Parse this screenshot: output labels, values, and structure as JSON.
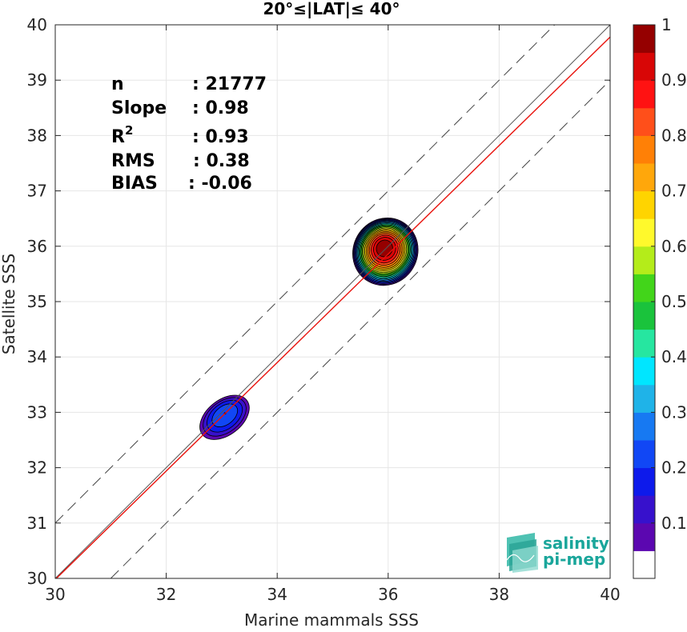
{
  "chart_data": {
    "type": "heatmap",
    "title": "20°≤|LAT|≤ 40°",
    "xlabel": "Marine mammals SSS",
    "ylabel": "Satellite SSS",
    "xlim": [
      30,
      40
    ],
    "ylim": [
      30,
      40
    ],
    "xticks": [
      "30",
      "32",
      "34",
      "36",
      "38",
      "40"
    ],
    "yticks": [
      "30",
      "31",
      "32",
      "33",
      "34",
      "35",
      "36",
      "37",
      "38",
      "39",
      "40"
    ],
    "grid": true,
    "stats": [
      {
        "label": "n",
        "value": ": 21777"
      },
      {
        "label": "Slope",
        "value": ": 0.98"
      },
      {
        "label": "R",
        "sup": "2",
        "value": ": 0.93"
      },
      {
        "label": "RMS",
        "value": ": 0.38"
      },
      {
        "label": "BIAS",
        "value": ": -0.06"
      }
    ],
    "lines": [
      {
        "kind": "identity",
        "style": "solid",
        "color": "#555555",
        "from": [
          30,
          30
        ],
        "to": [
          40,
          40
        ]
      },
      {
        "kind": "offset-upper",
        "style": "dashed",
        "color": "#444444",
        "from": [
          30,
          31
        ],
        "to": [
          39,
          40
        ]
      },
      {
        "kind": "offset-lower",
        "style": "dashed",
        "color": "#444444",
        "from": [
          31,
          30
        ],
        "to": [
          40,
          39
        ]
      },
      {
        "kind": "fit",
        "style": "solid",
        "color": "#e8120c",
        "from": [
          30,
          29.98
        ],
        "to": [
          40,
          39.78
        ]
      }
    ],
    "clusters": [
      {
        "cx": 33.05,
        "cy": 32.9,
        "rx": 0.55,
        "ry": 0.34,
        "rotation": -38,
        "peak": 0.25
      },
      {
        "cx": 35.95,
        "cy": 35.9,
        "rx": 0.62,
        "ry": 0.58,
        "rotation": -60,
        "peak": 1.0
      }
    ],
    "colorbar": {
      "min": 0,
      "max": 1,
      "ticks": [
        "0.1",
        "0.2",
        "0.3",
        "0.4",
        "0.5",
        "0.6",
        "0.7",
        "0.8",
        "0.9",
        "1"
      ],
      "colors": [
        "#ffffff",
        "#5b07b0",
        "#3711cc",
        "#0d1aeb",
        "#1147f5",
        "#1779f2",
        "#1fb3e8",
        "#00e6ff",
        "#26e6a0",
        "#1ac33c",
        "#42d51a",
        "#b4ec1a",
        "#fff92c",
        "#ffd400",
        "#ffa70b",
        "#ff8006",
        "#ff4f1a",
        "#ff1212",
        "#d80606",
        "#950000"
      ]
    },
    "logo": {
      "line1": "salinity",
      "line2": "pi-mep"
    }
  }
}
